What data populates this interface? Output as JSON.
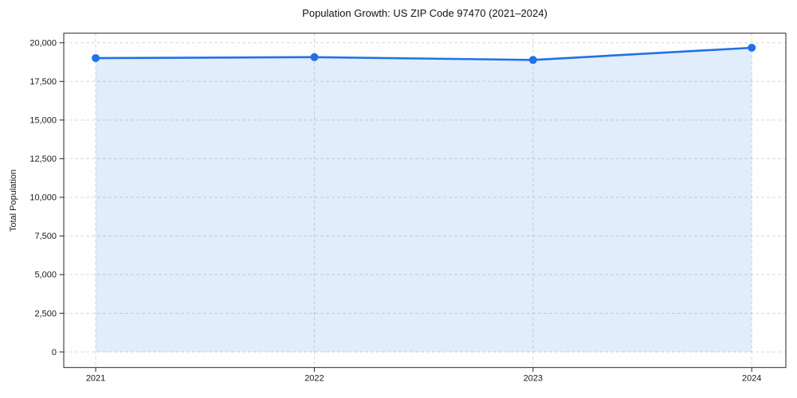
{
  "chart_data": {
    "type": "area",
    "title": "Population Growth: US ZIP Code 97470 (2021–2024)",
    "xlabel": "",
    "ylabel": "Total Population",
    "categories": [
      "2021",
      "2022",
      "2023",
      "2024"
    ],
    "series": [
      {
        "name": "Total Population",
        "values": [
          19010,
          19070,
          18890,
          19680
        ]
      }
    ],
    "yticks": [
      0,
      2500,
      5000,
      7500,
      10000,
      12500,
      15000,
      17500,
      20000
    ],
    "ytick_labels": [
      "0",
      "2,500",
      "5,000",
      "7,500",
      "10,000",
      "12,500",
      "15,000",
      "17,500",
      "20,000"
    ],
    "ylim": [
      -1010,
      20620
    ],
    "xlim": [
      -0.146,
      3.156
    ],
    "grid": true,
    "grid_style": "dashed",
    "legend": "none",
    "line_color": "#2171e8",
    "marker": "circle",
    "marker_color": "#2171e8",
    "fill_color": "#2171e8",
    "fill_opacity": 0.13,
    "grid_color": "#d7d7d7",
    "spine_color": "#262626",
    "background_color": "#ffffff"
  }
}
